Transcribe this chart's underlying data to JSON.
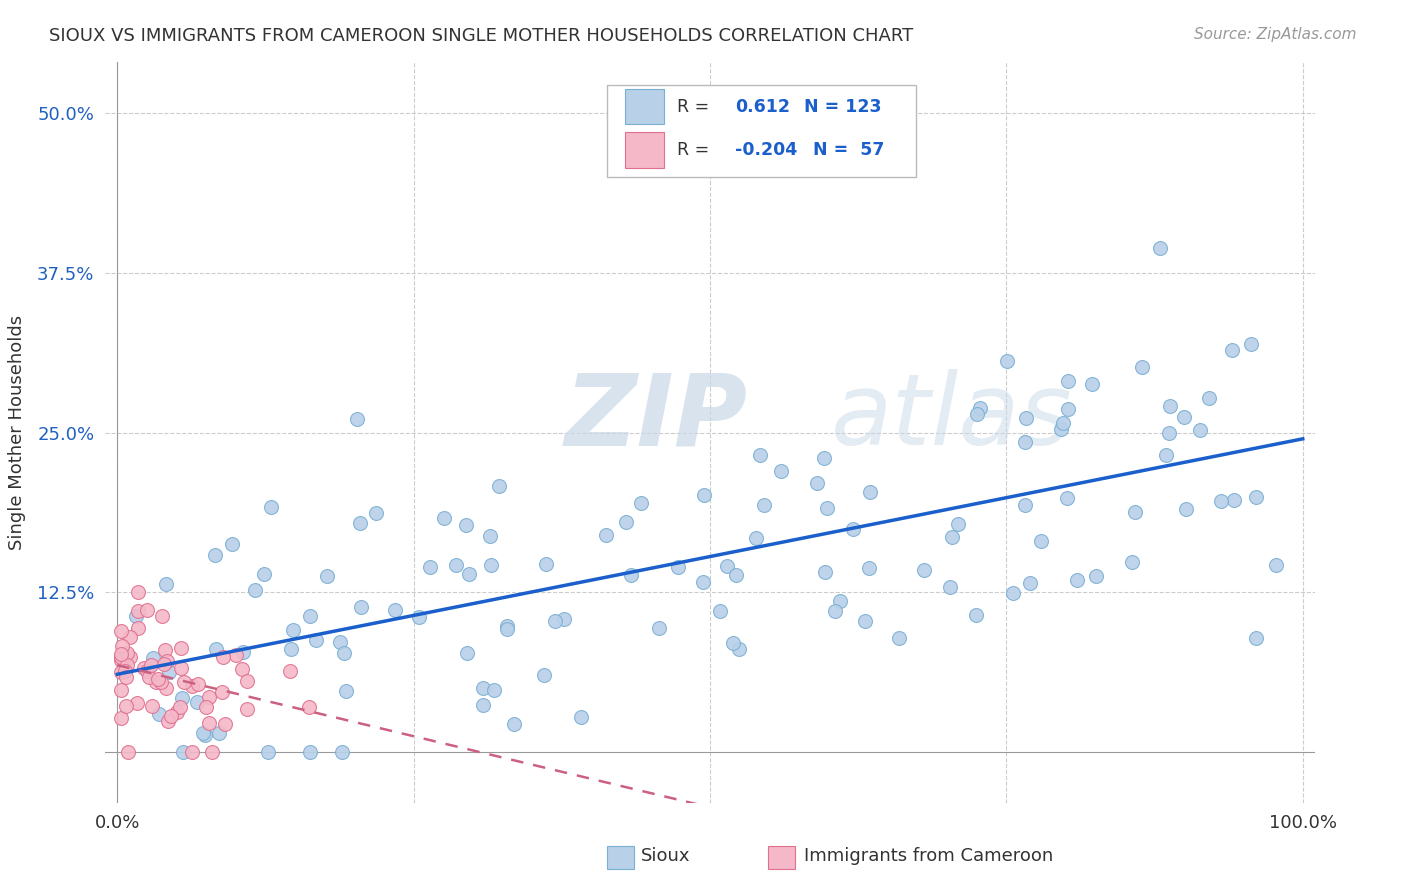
{
  "title": "SIOUX VS IMMIGRANTS FROM CAMEROON SINGLE MOTHER HOUSEHOLDS CORRELATION CHART",
  "source": "Source: ZipAtlas.com",
  "ylabel": "Single Mother Households",
  "xlim": [
    -0.01,
    1.01
  ],
  "ylim": [
    -0.04,
    0.54
  ],
  "xticks": [
    0.0,
    0.25,
    0.5,
    0.75,
    1.0
  ],
  "xtick_labels": [
    "0.0%",
    "",
    "",
    "",
    "100.0%"
  ],
  "ytick_labels": [
    "12.5%",
    "25.0%",
    "37.5%",
    "50.0%"
  ],
  "yticks": [
    0.125,
    0.25,
    0.375,
    0.5
  ],
  "grid_color": "#cccccc",
  "background_color": "#ffffff",
  "sioux_color": "#b8d0e8",
  "sioux_edge_color": "#7aafd4",
  "cameroon_color": "#f4b8c8",
  "cameroon_edge_color": "#e07090",
  "trend_sioux_color": "#1a5fcc",
  "trend_cameroon_color": "#cc6080",
  "R_sioux": 0.612,
  "N_sioux": 123,
  "R_cameroon": -0.204,
  "N_cameroon": 57,
  "watermark_zip": "ZIP",
  "watermark_atlas": "atlas",
  "legend_label1": "R =   0.612   N = 123",
  "legend_label2": "R = -0.204   N =  57"
}
